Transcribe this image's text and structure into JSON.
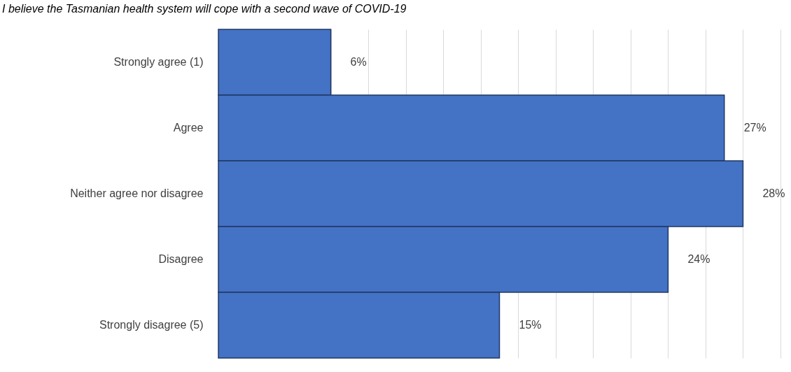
{
  "chart_data": {
    "type": "bar",
    "orientation": "horizontal",
    "title": "I believe the Tasmanian health system will cope with a second wave of COVID-19",
    "categories": [
      "Strongly agree (1)",
      "Agree",
      "Neither agree nor disagree",
      "Disagree",
      "Strongly disagree (5)"
    ],
    "values": [
      6,
      27,
      28,
      24,
      15
    ],
    "value_labels": [
      "6%",
      "27%",
      "28%",
      "24%",
      "15%"
    ],
    "color": "#4472c4",
    "xlim": [
      0,
      30
    ],
    "grid": "x",
    "tick_labels": "y"
  }
}
